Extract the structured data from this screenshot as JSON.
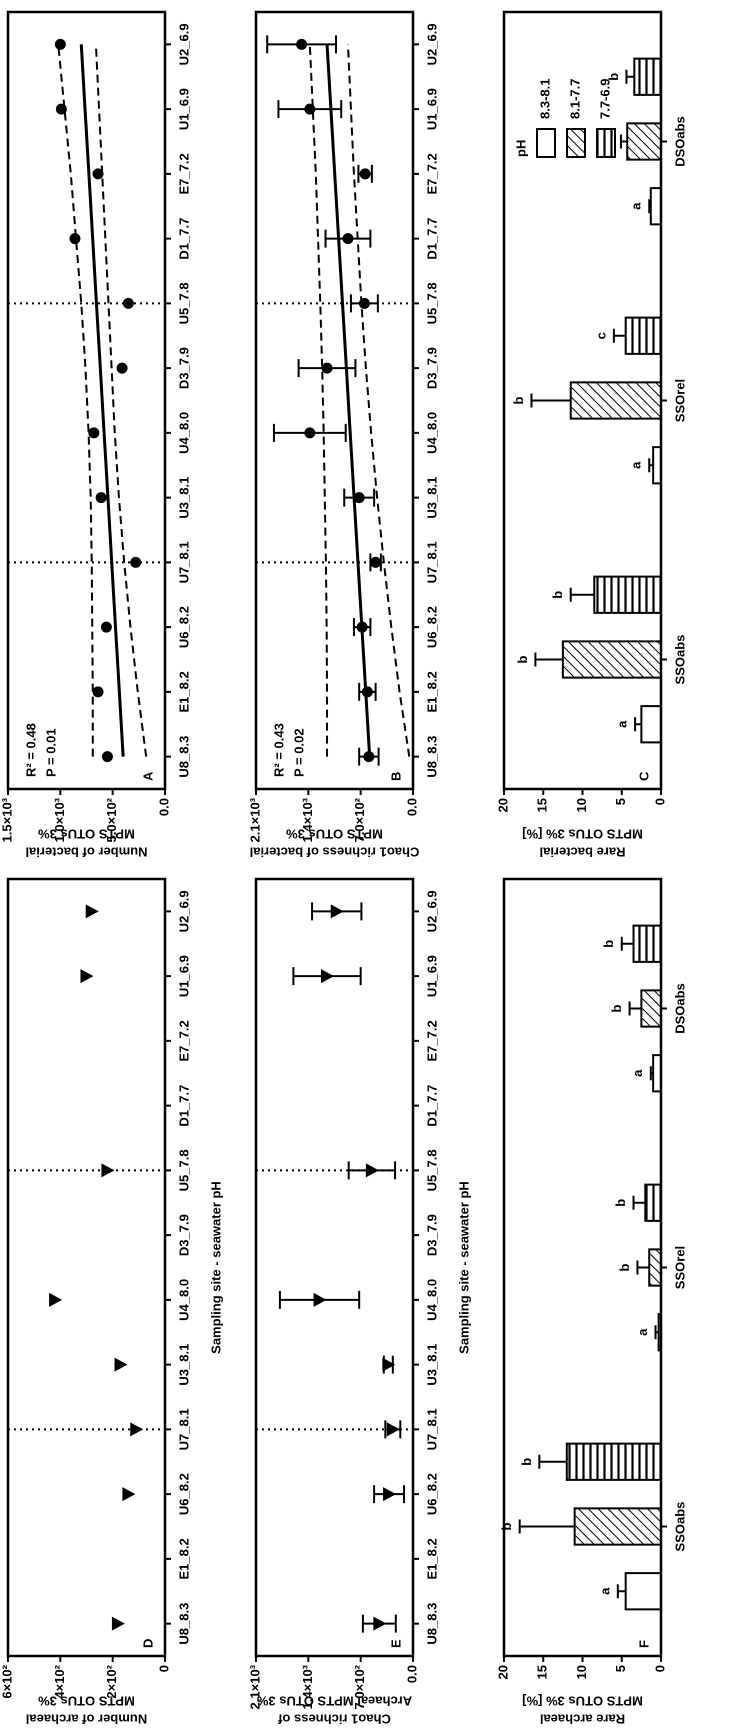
{
  "chart_data": [
    {
      "type": "line",
      "label": "A",
      "ylabel": [
        "Number of bacterial",
        "MPTS OTUs 3%"
      ],
      "categories": [
        "U8_8.3",
        "E1_8.2",
        "U6_8.2",
        "U7_8.1",
        "U3_8.1",
        "U4_8.0",
        "D3_7.9",
        "U5_7.8",
        "D1_7.7",
        "E7_7.2",
        "U1_6.9",
        "U2_6.9"
      ],
      "values": [
        550,
        640,
        560,
        280,
        610,
        680,
        410,
        350,
        860,
        640,
        990,
        1000
      ],
      "marker": "circle",
      "color": "#000000",
      "ylim": [
        0,
        1500
      ],
      "yticks": [
        {
          "value": 0,
          "label": "0.0"
        },
        {
          "value": 500,
          "label": "5.0×10²"
        },
        {
          "value": 1000,
          "label": "1.0×10³"
        },
        {
          "value": 1500,
          "label": "1.5×10³"
        }
      ],
      "lines": [
        {
          "style": "solid",
          "values": [
            400,
            436,
            473,
            509,
            545,
            582,
            618,
            655,
            691,
            727,
            764,
            800
          ]
        },
        {
          "style": "dashed",
          "values": [
            690,
            690,
            695,
            700,
            710,
            730,
            760,
            800,
            850,
            900,
            960,
            1020
          ]
        },
        {
          "style": "dashed",
          "values": [
            180,
            260,
            330,
            390,
            440,
            480,
            510,
            540,
            570,
            600,
            630,
            660
          ]
        }
      ],
      "dotted_at": [
        3,
        7
      ],
      "annotations": [
        "R² = 0.48",
        "P  = 0.01"
      ]
    },
    {
      "type": "line",
      "label": "B",
      "ylabel": [
        "Chao1 richness of bacterial",
        "MPTS OTUs 3%"
      ],
      "categories": [
        "U8_8.3",
        "E1_8.2",
        "U6_8.2",
        "U7_8.1",
        "U3_8.1",
        "U4_8.0",
        "D3_7.9",
        "U5_7.8",
        "D1_7.7",
        "E7_7.2",
        "U1_6.9",
        "U2_6.9"
      ],
      "values": [
        590,
        610,
        680,
        500,
        720,
        1380,
        1150,
        650,
        870,
        640,
        1380,
        1490
      ],
      "errors": [
        130,
        110,
        110,
        70,
        200,
        480,
        380,
        180,
        300,
        90,
        420,
        460
      ],
      "marker": "circle",
      "color": "#000000",
      "ylim": [
        0,
        2100
      ],
      "yticks": [
        {
          "value": 0,
          "label": "0.0"
        },
        {
          "value": 700,
          "label": "7.0×10²"
        },
        {
          "value": 1400,
          "label": "1.4×10³"
        },
        {
          "value": 2100,
          "label": "2.1×10³"
        }
      ],
      "lines": [
        {
          "style": "solid",
          "values": [
            580,
            632,
            684,
            736,
            788,
            840,
            891,
            943,
            995,
            1047,
            1098,
            1150
          ]
        },
        {
          "style": "dashed",
          "values": [
            1150,
            1150,
            1155,
            1165,
            1180,
            1195,
            1215,
            1240,
            1270,
            1300,
            1340,
            1380
          ]
        },
        {
          "style": "dashed",
          "values": [
            50,
            180,
            290,
            390,
            480,
            560,
            630,
            690,
            740,
            790,
            830,
            870
          ]
        }
      ],
      "dotted_at": [
        3,
        7
      ],
      "annotations": [
        "R² = 0.43",
        "P  = 0.02"
      ]
    },
    {
      "type": "bar",
      "label": "C",
      "ylabel": [
        "Rare bacterial",
        "MPTS OTUs 3% [%]"
      ],
      "categories": [
        "SSOabs",
        "SSOrel",
        "DSOabs"
      ],
      "series": [
        {
          "name": "8.3-8.1",
          "pattern": "none",
          "values": [
            2.5,
            1,
            1.3
          ],
          "errors": [
            0.8,
            0.5,
            0.2
          ],
          "letters": [
            "a",
            "a",
            "a"
          ]
        },
        {
          "name": "8.1-7.7",
          "pattern": "diagonal",
          "values": [
            12.5,
            11.5,
            4.3
          ],
          "errors": [
            3.5,
            5,
            0.8
          ],
          "letters": [
            "b",
            "b",
            "b"
          ]
        },
        {
          "name": "7.7-6.9",
          "pattern": "horizontal",
          "values": [
            8.5,
            4.5,
            3.4
          ],
          "errors": [
            3,
            1.5,
            1
          ],
          "letters": [
            "b",
            "c",
            "b"
          ]
        }
      ],
      "ylim": [
        0,
        20
      ],
      "yticks": [
        0,
        5,
        10,
        15,
        20
      ],
      "legend": true,
      "legend_title": "pH"
    },
    {
      "type": "line",
      "label": "D",
      "ylabel": [
        "Number of archaeal",
        "MPTS OTUs 3%"
      ],
      "x_label": "Sampling site - seawater pH",
      "categories": [
        "U8_8.3",
        "E1_8.2",
        "U6_8.2",
        "U7_8.1",
        "U3_8.1",
        "U4_8.0",
        "D3_7.9",
        "U5_7.8",
        "D1_7.7",
        "E7_7.2",
        "U1_6.9",
        "U2_6.9"
      ],
      "values": [
        180,
        null,
        140,
        110,
        170,
        420,
        null,
        220,
        null,
        null,
        300,
        280
      ],
      "marker": "triangle",
      "color": "#000000",
      "ylim": [
        0,
        600
      ],
      "yticks": [
        0,
        {
          "value": 200,
          "label": "2×10²"
        },
        {
          "value": 400,
          "label": "4×10²"
        },
        {
          "value": 600,
          "label": "6×10²"
        }
      ],
      "dotted_at": [
        3,
        7
      ]
    },
    {
      "type": "line",
      "label": "E",
      "ylabel": [
        "Chao1 richness of",
        "Archaeal MPTS OTUs 3%"
      ],
      "x_label": "Sampling site - seawater pH",
      "categories": [
        "U8_8.3",
        "E1_8.2",
        "U6_8.2",
        "U7_8.1",
        "U3_8.1",
        "U4_8.0",
        "D3_7.9",
        "U5_7.8",
        "D1_7.7",
        "E7_7.2",
        "U1_6.9",
        "U2_6.9"
      ],
      "values": [
        450,
        null,
        320,
        270,
        330,
        1250,
        null,
        550,
        null,
        null,
        1150,
        1020
      ],
      "errors": [
        220,
        null,
        200,
        100,
        60,
        530,
        null,
        310,
        null,
        null,
        450,
        330
      ],
      "marker": "triangle",
      "color": "#000000",
      "ylim": [
        0,
        2100
      ],
      "yticks": [
        {
          "value": 0,
          "label": "0.0"
        },
        {
          "value": 700,
          "label": "7.0×10²"
        },
        {
          "value": 1400,
          "label": "1.4×10³"
        },
        {
          "value": 2100,
          "label": "2.1×10³"
        }
      ],
      "dotted_at": [
        3,
        7
      ]
    },
    {
      "type": "bar",
      "label": "F",
      "ylabel": [
        "Rare archaeal",
        "MPTS OTUs 3% [%]"
      ],
      "categories": [
        "SSOabs",
        "SSOrel",
        "DSOabs"
      ],
      "series": [
        {
          "name": "8.3-8.1",
          "pattern": "none",
          "values": [
            4.5,
            0.3,
            1
          ],
          "errors": [
            1,
            0.4,
            0.3
          ],
          "letters": [
            "a",
            "a",
            "a"
          ]
        },
        {
          "name": "8.1-7.7",
          "pattern": "diagonal",
          "values": [
            11,
            1.5,
            2.5
          ],
          "errors": [
            7,
            1.5,
            1.5
          ],
          "letters": [
            "b",
            "b",
            "b"
          ]
        },
        {
          "name": "7.7-6.9",
          "pattern": "horizontal",
          "values": [
            12,
            2,
            3.5
          ],
          "errors": [
            3.5,
            1.5,
            1.5
          ],
          "letters": [
            "b",
            "b",
            "b"
          ]
        }
      ],
      "ylim": [
        0,
        20
      ],
      "yticks": [
        0,
        5,
        10,
        15,
        20
      ],
      "legend": false
    }
  ]
}
